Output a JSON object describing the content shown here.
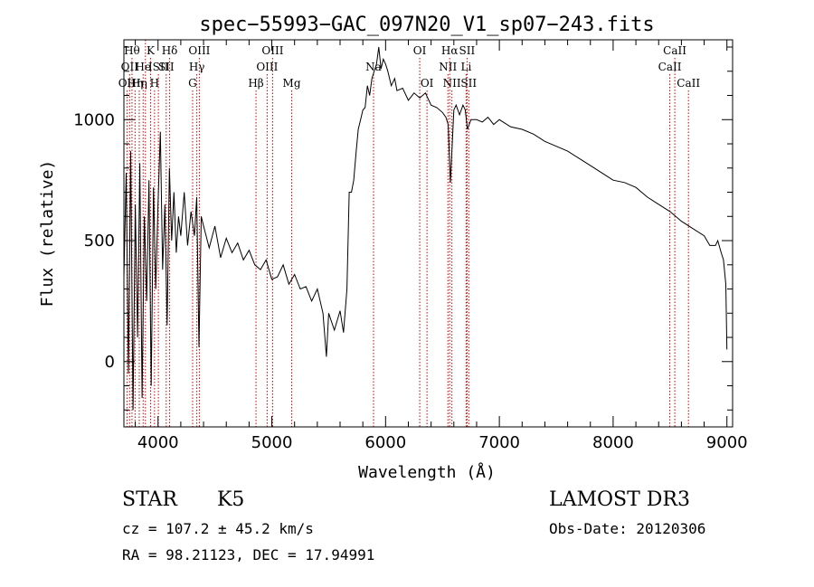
{
  "chart_data": {
    "type": "line",
    "title": "spec−55993−GAC_097N20_V1_sp07−243.fits",
    "xlabel": "Wavelength (Å)",
    "ylabel": "Flux (relative)",
    "xlim": [
      3700,
      9050
    ],
    "ylim": [
      -270,
      1330
    ],
    "x_ticks": [
      4000,
      5000,
      6000,
      7000,
      8000,
      9000
    ],
    "y_ticks": [
      0,
      500,
      1000
    ],
    "series": [
      {
        "name": "spectrum",
        "points": [
          [
            3700,
            350
          ],
          [
            3720,
            780
          ],
          [
            3740,
            -50
          ],
          [
            3760,
            870
          ],
          [
            3780,
            -200
          ],
          [
            3800,
            650
          ],
          [
            3820,
            100
          ],
          [
            3840,
            820
          ],
          [
            3860,
            -150
          ],
          [
            3880,
            600
          ],
          [
            3900,
            250
          ],
          [
            3920,
            750
          ],
          [
            3940,
            -100
          ],
          [
            3960,
            720
          ],
          [
            3980,
            300
          ],
          [
            4000,
            650
          ],
          [
            4020,
            950
          ],
          [
            4040,
            380
          ],
          [
            4060,
            650
          ],
          [
            4080,
            150
          ],
          [
            4100,
            800
          ],
          [
            4120,
            500
          ],
          [
            4140,
            700
          ],
          [
            4160,
            450
          ],
          [
            4180,
            600
          ],
          [
            4200,
            520
          ],
          [
            4230,
            700
          ],
          [
            4260,
            480
          ],
          [
            4290,
            620
          ],
          [
            4320,
            520
          ],
          [
            4340,
            680
          ],
          [
            4360,
            60
          ],
          [
            4380,
            600
          ],
          [
            4400,
            560
          ],
          [
            4450,
            470
          ],
          [
            4500,
            560
          ],
          [
            4550,
            430
          ],
          [
            4600,
            510
          ],
          [
            4650,
            450
          ],
          [
            4700,
            490
          ],
          [
            4750,
            420
          ],
          [
            4800,
            460
          ],
          [
            4850,
            400
          ],
          [
            4900,
            380
          ],
          [
            4950,
            420
          ],
          [
            5000,
            340
          ],
          [
            5050,
            350
          ],
          [
            5100,
            400
          ],
          [
            5150,
            320
          ],
          [
            5200,
            360
          ],
          [
            5250,
            300
          ],
          [
            5300,
            310
          ],
          [
            5350,
            250
          ],
          [
            5400,
            300
          ],
          [
            5450,
            200
          ],
          [
            5480,
            20
          ],
          [
            5500,
            200
          ],
          [
            5550,
            130
          ],
          [
            5600,
            210
          ],
          [
            5630,
            120
          ],
          [
            5660,
            300
          ],
          [
            5680,
            700
          ],
          [
            5700,
            700
          ],
          [
            5720,
            750
          ],
          [
            5740,
            860
          ],
          [
            5760,
            960
          ],
          [
            5780,
            1000
          ],
          [
            5800,
            1040
          ],
          [
            5820,
            1050
          ],
          [
            5840,
            1140
          ],
          [
            5860,
            1100
          ],
          [
            5880,
            1170
          ],
          [
            5900,
            1200
          ],
          [
            5920,
            1230
          ],
          [
            5940,
            1300
          ],
          [
            5960,
            1210
          ],
          [
            5980,
            1250
          ],
          [
            6000,
            1230
          ],
          [
            6020,
            1200
          ],
          [
            6050,
            1140
          ],
          [
            6080,
            1170
          ],
          [
            6100,
            1120
          ],
          [
            6150,
            1130
          ],
          [
            6200,
            1080
          ],
          [
            6250,
            1110
          ],
          [
            6300,
            1090
          ],
          [
            6350,
            1110
          ],
          [
            6400,
            1060
          ],
          [
            6450,
            1050
          ],
          [
            6500,
            1030
          ],
          [
            6530,
            1010
          ],
          [
            6550,
            980
          ],
          [
            6570,
            740
          ],
          [
            6600,
            1040
          ],
          [
            6620,
            1060
          ],
          [
            6650,
            1020
          ],
          [
            6680,
            1060
          ],
          [
            6700,
            1040
          ],
          [
            6720,
            960
          ],
          [
            6750,
            1000
          ],
          [
            6800,
            1000
          ],
          [
            6850,
            990
          ],
          [
            6900,
            1010
          ],
          [
            6950,
            980
          ],
          [
            7000,
            1000
          ],
          [
            7100,
            970
          ],
          [
            7200,
            960
          ],
          [
            7300,
            940
          ],
          [
            7400,
            910
          ],
          [
            7500,
            890
          ],
          [
            7600,
            870
          ],
          [
            7700,
            840
          ],
          [
            7800,
            810
          ],
          [
            7900,
            780
          ],
          [
            8000,
            750
          ],
          [
            8100,
            740
          ],
          [
            8200,
            720
          ],
          [
            8300,
            680
          ],
          [
            8400,
            650
          ],
          [
            8500,
            620
          ],
          [
            8600,
            580
          ],
          [
            8700,
            550
          ],
          [
            8800,
            520
          ],
          [
            8850,
            480
          ],
          [
            8900,
            480
          ],
          [
            8920,
            500
          ],
          [
            8950,
            450
          ],
          [
            8970,
            420
          ],
          [
            8990,
            320
          ],
          [
            9000,
            50
          ]
        ]
      }
    ],
    "spectral_lines": [
      {
        "wavelength": 3727,
        "label": "OII",
        "row": 3
      },
      {
        "wavelength": 3750,
        "label": "OII",
        "row": 2
      },
      {
        "wavelength": 3771,
        "label": "Hθ",
        "row": 1
      },
      {
        "wavelength": 3798,
        "label": "Hη",
        "row": 3
      },
      {
        "wavelength": 3835,
        "label": "Hη",
        "row": 3
      },
      {
        "wavelength": 3869,
        "label": "He",
        "row": 2
      },
      {
        "wavelength": 3889,
        "label": "",
        "row": 0
      },
      {
        "wavelength": 3934,
        "label": "K",
        "row": 1
      },
      {
        "wavelength": 3969,
        "label": "H",
        "row": 3
      },
      {
        "wavelength": 4003,
        "label": "ISII",
        "row": 2
      },
      {
        "wavelength": 4072,
        "label": "SII",
        "row": 2
      },
      {
        "wavelength": 4102,
        "label": "Hδ",
        "row": 1
      },
      {
        "wavelength": 4304,
        "label": "G",
        "row": 3
      },
      {
        "wavelength": 4341,
        "label": "Hγ",
        "row": 2
      },
      {
        "wavelength": 4363,
        "label": "OIII",
        "row": 1
      },
      {
        "wavelength": 4861,
        "label": "Hβ",
        "row": 3
      },
      {
        "wavelength": 4959,
        "label": "OIII",
        "row": 2
      },
      {
        "wavelength": 5007,
        "label": "OIII",
        "row": 1
      },
      {
        "wavelength": 5175,
        "label": "Mg",
        "row": 3
      },
      {
        "wavelength": 5894,
        "label": "Na",
        "row": 2
      },
      {
        "wavelength": 6300,
        "label": "OI",
        "row": 1
      },
      {
        "wavelength": 6364,
        "label": "OI",
        "row": 3
      },
      {
        "wavelength": 6548,
        "label": "NII",
        "row": 2
      },
      {
        "wavelength": 6563,
        "label": "Hα",
        "row": 1
      },
      {
        "wavelength": 6583,
        "label": "NII",
        "row": 3
      },
      {
        "wavelength": 6708,
        "label": "Li",
        "row": 2
      },
      {
        "wavelength": 6716,
        "label": "SII",
        "row": 1
      },
      {
        "wavelength": 6731,
        "label": "SII",
        "row": 3
      },
      {
        "wavelength": 8498,
        "label": "CaII",
        "row": 2
      },
      {
        "wavelength": 8542,
        "label": "CaII",
        "row": 1
      },
      {
        "wavelength": 8662,
        "label": "CaII",
        "row": 3
      }
    ]
  },
  "info": {
    "class_label": "STAR",
    "subclass": "K5",
    "cz": "cz = 107.2 ± 45.2 km/s",
    "radec": "RA =  98.21123, DEC =  17.94991",
    "survey": "LAMOST DR3",
    "obs_date": "Obs-Date: 20120306"
  },
  "colors": {
    "spectrum": "#000000",
    "line_marker": "#cc0000",
    "axis": "#000000"
  }
}
